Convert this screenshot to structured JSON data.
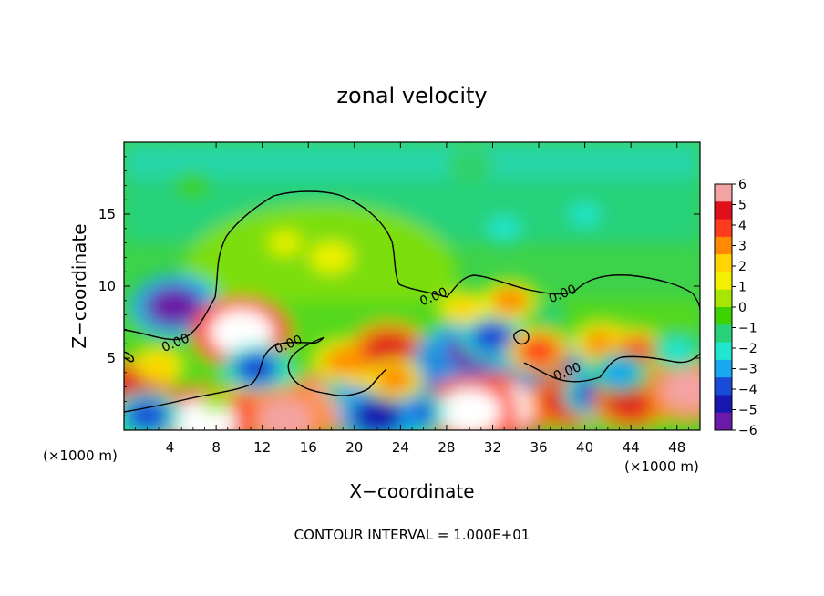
{
  "chart_data": {
    "type": "heatmap",
    "title": "zonal velocity",
    "xlabel": "X−coordinate",
    "ylabel": "Z−coordinate",
    "x_unit_label": "(×1000 m)",
    "y_unit_label": "(×1000 m)",
    "footer": "CONTOUR INTERVAL = 1.000E+01",
    "xlim": [
      0,
      50
    ],
    "ylim": [
      0,
      20
    ],
    "x_ticks": [
      4,
      8,
      12,
      16,
      20,
      24,
      28,
      32,
      36,
      40,
      44,
      48
    ],
    "y_ticks": [
      5,
      10,
      15
    ],
    "colorbar": {
      "ticks": [
        "6",
        "5",
        "4",
        "3",
        "2",
        "1",
        "0",
        "−1",
        "−2",
        "−3",
        "−4",
        "−5",
        "−6"
      ],
      "colors": [
        "#f4a3a3",
        "#e0101a",
        "#ff3b1e",
        "#ff8a00",
        "#ffd400",
        "#f2f200",
        "#a6e600",
        "#3ed200",
        "#27d27a",
        "#20e6d0",
        "#18a8f0",
        "#1a4bd8",
        "#1818b0",
        "#6a1aa8"
      ],
      "range": [
        -6,
        6
      ]
    },
    "contour_labels": [
      {
        "text": "0.00",
        "x": 4.6,
        "z": 5.8
      },
      {
        "text": "0.00",
        "x": 14.4,
        "z": 5.7
      },
      {
        "text": "0.00",
        "x": 27.0,
        "z": 9.0
      },
      {
        "text": "0.00",
        "x": 38.2,
        "z": 9.2
      },
      {
        "text": "0.00",
        "x": 38.6,
        "z": 3.8
      }
    ],
    "blobs": [
      {
        "x": 5,
        "z": 9,
        "v": -4.5
      },
      {
        "x": 4.3,
        "z": 8.6,
        "v": -5.8
      },
      {
        "x": 9.5,
        "z": 7,
        "v": 5.5
      },
      {
        "x": 10.2,
        "z": 6.8,
        "v": 7
      },
      {
        "x": 1,
        "z": 3,
        "v": 5
      },
      {
        "x": 12,
        "z": 2.5,
        "v": 4
      },
      {
        "x": 16,
        "z": 2.2,
        "v": -4
      },
      {
        "x": 18,
        "z": 2,
        "v": 6
      },
      {
        "x": 20,
        "z": 3,
        "v": -3
      },
      {
        "x": 21,
        "z": 4.6,
        "v": 4
      },
      {
        "x": 19,
        "z": 4.8,
        "v": 3
      },
      {
        "x": 23,
        "z": 5.5,
        "v": 5
      },
      {
        "x": 26,
        "z": 3.3,
        "v": -4
      },
      {
        "x": 28.5,
        "z": 5,
        "v": -5
      },
      {
        "x": 30.5,
        "z": 5.5,
        "v": -6
      },
      {
        "x": 32,
        "z": 6.5,
        "v": -4
      },
      {
        "x": 33,
        "z": 1.6,
        "v": 6.5
      },
      {
        "x": 30,
        "z": 1.3,
        "v": 7
      },
      {
        "x": 25,
        "z": 1.2,
        "v": -4
      },
      {
        "x": 22,
        "z": 1.0,
        "v": -5
      },
      {
        "x": 37,
        "z": 4.5,
        "v": -5
      },
      {
        "x": 38.5,
        "z": 2,
        "v": 5
      },
      {
        "x": 41,
        "z": 2.5,
        "v": -4
      },
      {
        "x": 44,
        "z": 2.0,
        "v": 5
      },
      {
        "x": 46,
        "z": 4.2,
        "v": -3
      },
      {
        "x": 49,
        "z": 2.8,
        "v": 6
      },
      {
        "x": 14,
        "z": 0.8,
        "v": 6
      },
      {
        "x": 7,
        "z": 0.6,
        "v": 7
      },
      {
        "x": 2,
        "z": 1,
        "v": -4
      },
      {
        "x": 36,
        "z": 5.5,
        "v": 3.5
      },
      {
        "x": 41.5,
        "z": 6,
        "v": 3
      },
      {
        "x": 44.5,
        "z": 5.4,
        "v": 3.5
      },
      {
        "x": 43,
        "z": 4,
        "v": -3
      },
      {
        "x": 33.5,
        "z": 9,
        "v": 3
      },
      {
        "x": 37,
        "z": 8,
        "v": -1.5
      },
      {
        "x": 29.5,
        "z": 8.5,
        "v": 2
      },
      {
        "x": 18,
        "z": 12,
        "v": 1.6
      },
      {
        "x": 14,
        "z": 13,
        "v": 1.5
      },
      {
        "x": 33,
        "z": 14,
        "v": -2.3
      },
      {
        "x": 40,
        "z": 15,
        "v": -2.0
      },
      {
        "x": 30,
        "z": 18.5,
        "v": -1.3
      },
      {
        "x": 6,
        "z": 17,
        "v": -0.8
      },
      {
        "x": 11.5,
        "z": 4.3,
        "v": -4
      },
      {
        "x": 23.5,
        "z": 3.5,
        "v": 3
      },
      {
        "x": 48,
        "z": 5.5,
        "v": -2.5
      },
      {
        "x": 3,
        "z": 4.5,
        "v": 2
      },
      {
        "x": 8,
        "z": 2,
        "v": 0.5
      }
    ]
  }
}
